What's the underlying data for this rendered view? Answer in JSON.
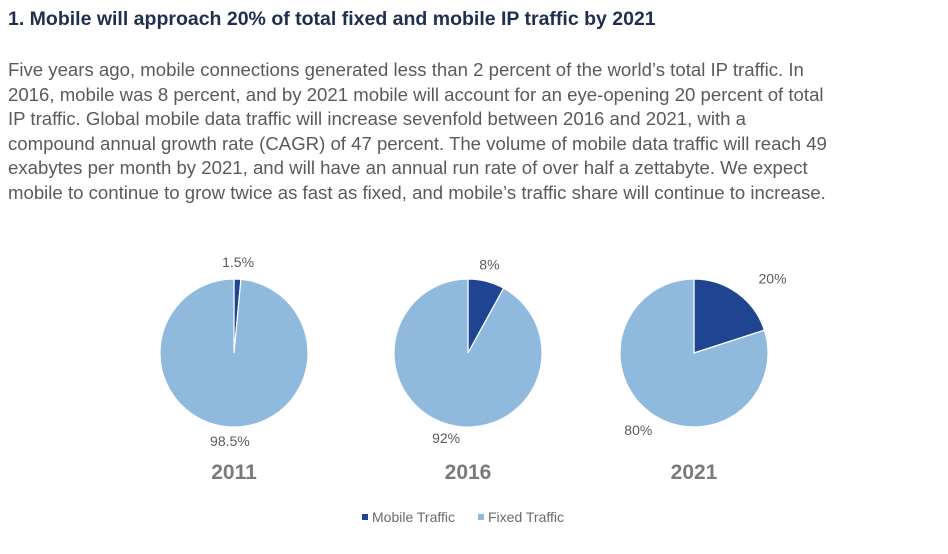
{
  "heading": "1. Mobile will approach 20% of total fixed and mobile IP traffic by 2021",
  "paragraph_lines": [
    "Five years ago, mobile connections generated less than 2 percent of the world’s total IP traffic. In",
    "2016, mobile was 8 percent, and by 2021 mobile will account for an eye-opening 20 percent of total",
    "IP traffic. Global mobile data traffic will increase sevenfold between 2016 and 2021, with a",
    "compound annual growth rate (CAGR) of 47 percent. The volume of mobile data traffic will reach 49",
    "exabytes per month by 2021, and will have an annual run rate of over half a zettabyte. We expect",
    "mobile to continue to grow twice as fast as fixed, and mobile’s traffic share will continue to increase."
  ],
  "colors": {
    "mobile": "#1f4592",
    "fixed": "#8fbadd",
    "heading": "#1f2f4f",
    "text": "#5a5a5a"
  },
  "chart_data": {
    "type": "pie",
    "legend": {
      "position": "bottom",
      "entries": [
        "Mobile Traffic",
        "Fixed Traffic"
      ]
    },
    "pies": [
      {
        "title": "2011",
        "values": [
          1.5,
          98.5
        ],
        "labels": [
          "1.5%",
          "98.5%"
        ]
      },
      {
        "title": "2016",
        "values": [
          8,
          92
        ],
        "labels": [
          "8%",
          "92%"
        ]
      },
      {
        "title": "2021",
        "values": [
          20,
          80
        ],
        "labels": [
          "20%",
          "80%"
        ]
      }
    ]
  }
}
